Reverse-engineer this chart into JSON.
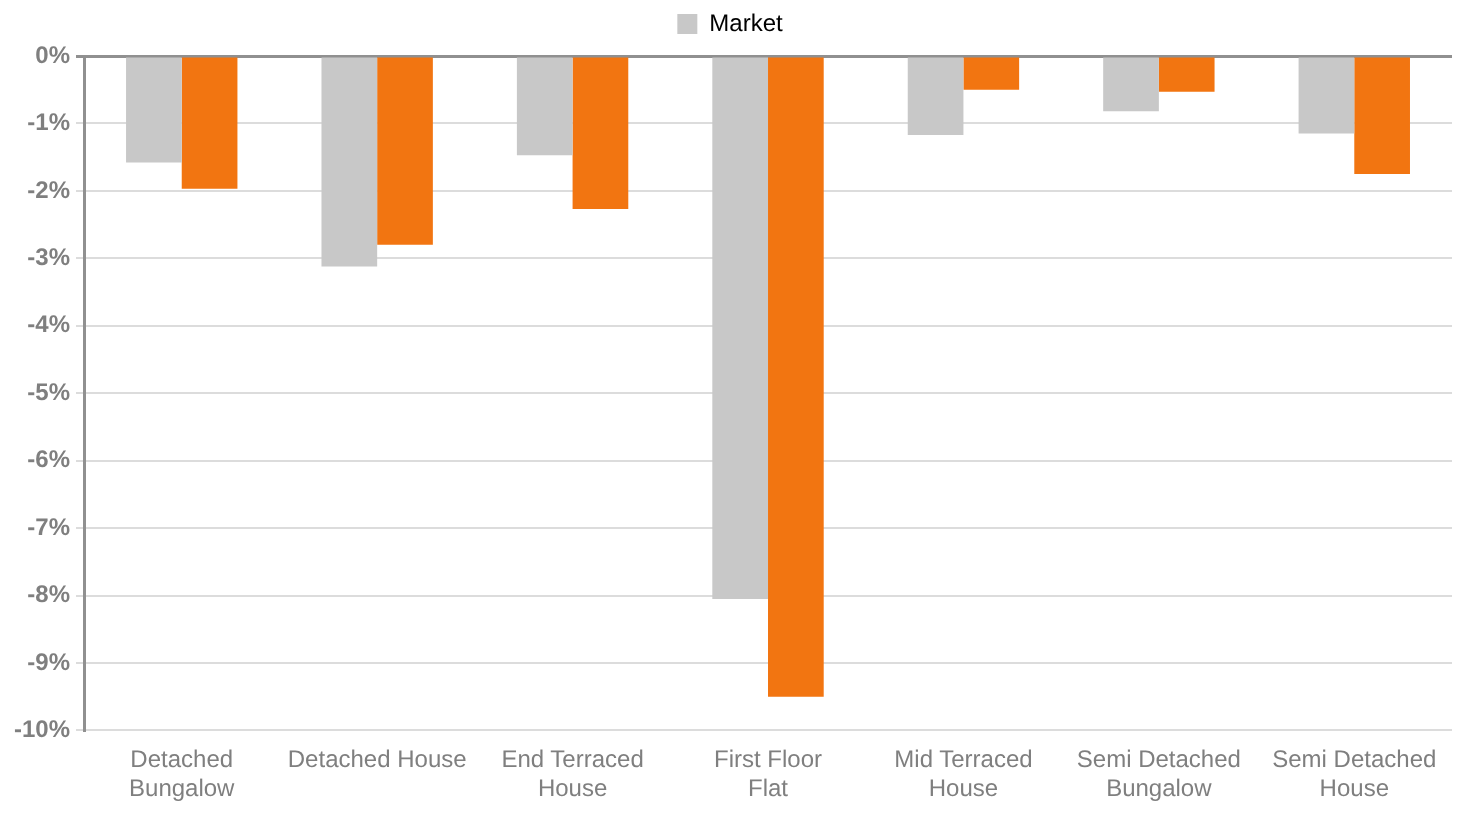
{
  "chart_data": {
    "type": "bar",
    "categories": [
      "Detached Bungalow",
      "Detached House",
      "End Terraced House",
      "First Floor Flat",
      "Mid Terraced House",
      "Semi Detached Bungalow",
      "Semi Detached House"
    ],
    "series": [
      {
        "name": "Market",
        "color": "#c8c8c8",
        "values": [
          -1.58,
          -3.12,
          -1.47,
          -8.05,
          -1.17,
          -0.82,
          -1.15
        ]
      },
      {
        "color": "#f27511",
        "values": [
          -1.97,
          -2.8,
          -2.27,
          -9.5,
          -0.5,
          -0.53,
          -1.75
        ]
      }
    ],
    "ylim": [
      -10,
      0
    ],
    "yticks": [
      {
        "value": 0,
        "label": "0%"
      },
      {
        "value": -1,
        "label": "-1%"
      },
      {
        "value": -2,
        "label": "-2%"
      },
      {
        "value": -3,
        "label": "-3%"
      },
      {
        "value": -4,
        "label": "-4%"
      },
      {
        "value": -5,
        "label": "-5%"
      },
      {
        "value": -6,
        "label": "-6%"
      },
      {
        "value": -7,
        "label": "-7%"
      },
      {
        "value": -8,
        "label": "-8%"
      },
      {
        "value": -9,
        "label": "-9%"
      },
      {
        "value": -10,
        "label": "-10%"
      }
    ],
    "grid": "y",
    "legend": "top"
  }
}
